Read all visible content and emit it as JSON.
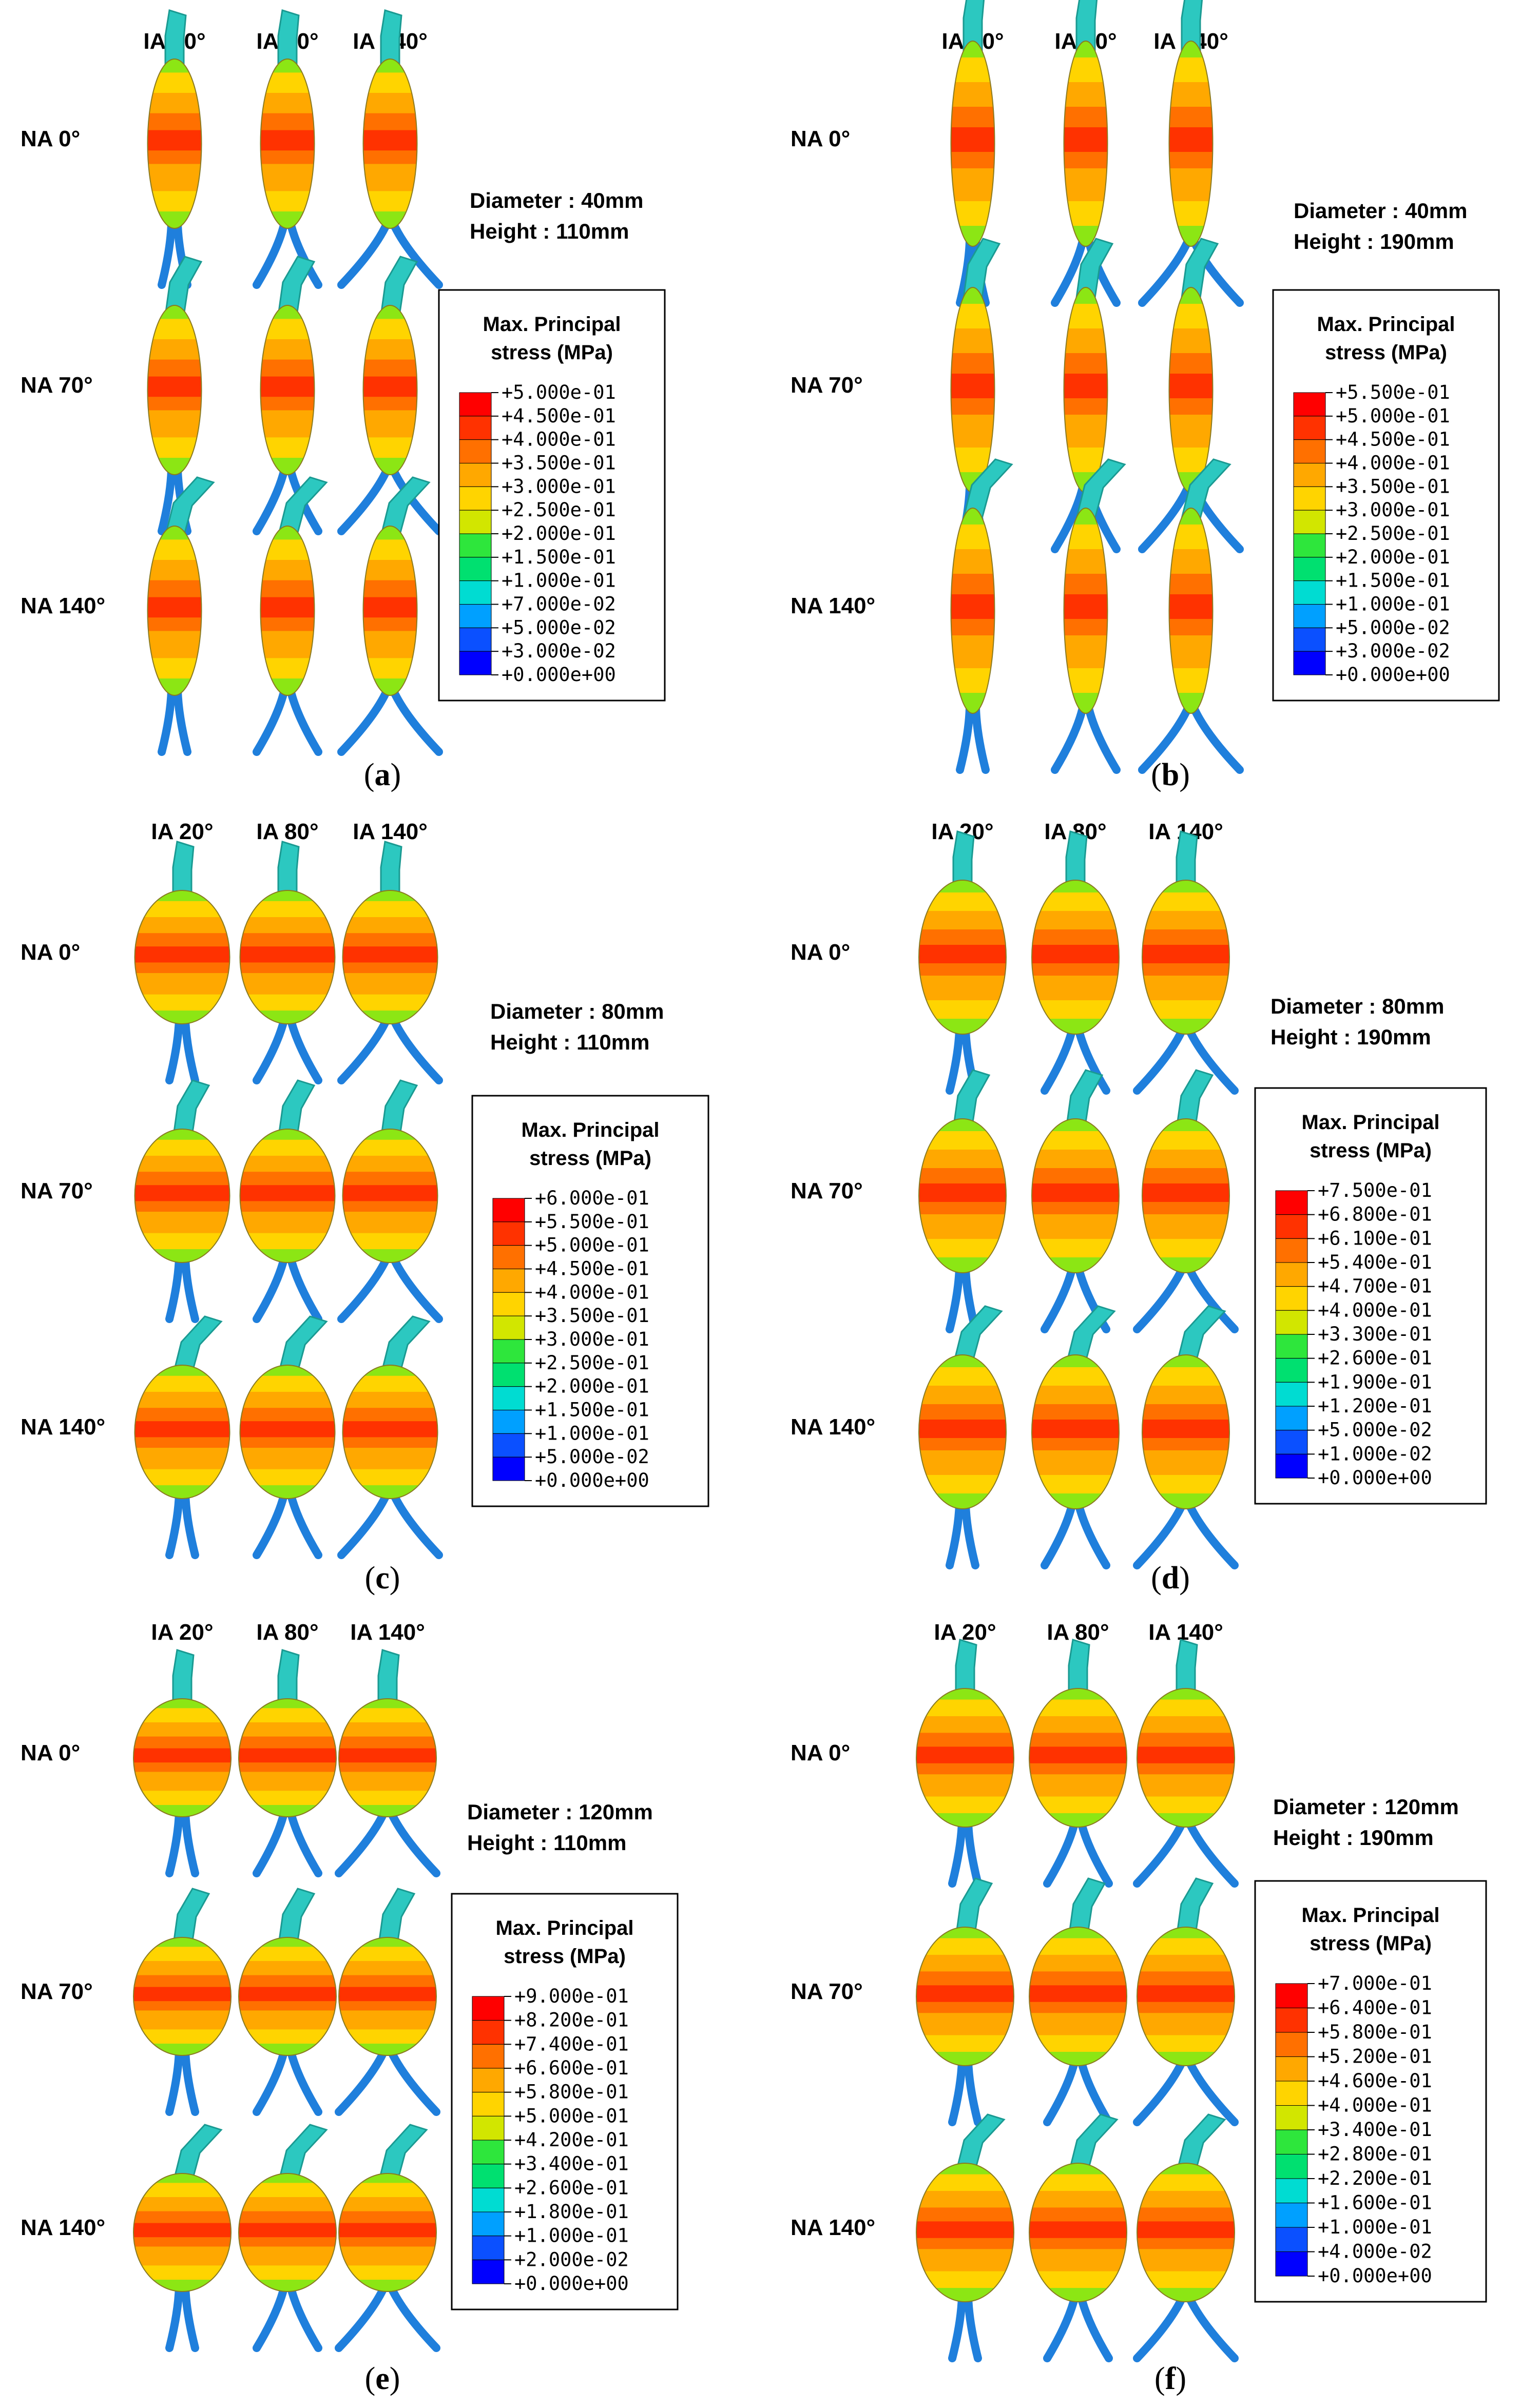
{
  "figure": {
    "column_headers": [
      "IA 20°",
      "IA 80°",
      "IA 140°"
    ],
    "row_labels": [
      "NA 0°",
      "NA 70°",
      "NA 140°"
    ],
    "legend_title_line1": "Max. Principal",
    "legend_title_line2": "stress (MPa)",
    "colors": {
      "contour": [
        "#0000ff",
        "#0b50ff",
        "#00a0ff",
        "#00dcd2",
        "#00e070",
        "#2ee63c",
        "#8ce614",
        "#d2e600",
        "#ffd400",
        "#ffa800",
        "#ff7000",
        "#ff3200",
        "#ff0000"
      ],
      "nozzle": "#2cc8c0",
      "legs": "#1f7fdc"
    },
    "panels": [
      {
        "id": "a",
        "caption": "a",
        "diameter_text": "Diameter : 40mm",
        "height_text": "Height : 110mm",
        "legend_values": [
          "+5.000e-01",
          "+4.500e-01",
          "+4.000e-01",
          "+3.500e-01",
          "+3.000e-01",
          "+2.500e-01",
          "+2.000e-01",
          "+1.500e-01",
          "+1.000e-01",
          "+7.000e-02",
          "+5.000e-02",
          "+3.000e-02",
          "+0.000e+00"
        ]
      },
      {
        "id": "b",
        "caption": "b",
        "diameter_text": "Diameter : 40mm",
        "height_text": "Height : 190mm",
        "legend_values": [
          "+5.500e-01",
          "+5.000e-01",
          "+4.500e-01",
          "+4.000e-01",
          "+3.500e-01",
          "+3.000e-01",
          "+2.500e-01",
          "+2.000e-01",
          "+1.500e-01",
          "+1.000e-01",
          "+5.000e-02",
          "+3.000e-02",
          "+0.000e+00"
        ]
      },
      {
        "id": "c",
        "caption": "c",
        "diameter_text": "Diameter : 80mm",
        "height_text": "Height : 110mm",
        "legend_values": [
          "+6.000e-01",
          "+5.500e-01",
          "+5.000e-01",
          "+4.500e-01",
          "+4.000e-01",
          "+3.500e-01",
          "+3.000e-01",
          "+2.500e-01",
          "+2.000e-01",
          "+1.500e-01",
          "+1.000e-01",
          "+5.000e-02",
          "+0.000e+00"
        ]
      },
      {
        "id": "d",
        "caption": "d",
        "diameter_text": "Diameter : 80mm",
        "height_text": "Height : 190mm",
        "legend_values": [
          "+7.500e-01",
          "+6.800e-01",
          "+6.100e-01",
          "+5.400e-01",
          "+4.700e-01",
          "+4.000e-01",
          "+3.300e-01",
          "+2.600e-01",
          "+1.900e-01",
          "+1.200e-01",
          "+5.000e-02",
          "+1.000e-02",
          "+0.000e+00"
        ]
      },
      {
        "id": "e",
        "caption": "e",
        "diameter_text": "Diameter : 120mm",
        "height_text": "Height : 110mm",
        "legend_values": [
          "+9.000e-01",
          "+8.200e-01",
          "+7.400e-01",
          "+6.600e-01",
          "+5.800e-01",
          "+5.000e-01",
          "+4.200e-01",
          "+3.400e-01",
          "+2.600e-01",
          "+1.800e-01",
          "+1.000e-01",
          "+2.000e-02",
          "+0.000e+00"
        ]
      },
      {
        "id": "f",
        "caption": "f",
        "diameter_text": "Diameter : 120mm",
        "height_text": "Height : 190mm",
        "legend_values": [
          "+7.000e-01",
          "+6.400e-01",
          "+5.800e-01",
          "+5.200e-01",
          "+4.600e-01",
          "+4.000e-01",
          "+3.400e-01",
          "+2.800e-01",
          "+2.200e-01",
          "+1.600e-01",
          "+1.000e-01",
          "+4.000e-02",
          "+0.000e+00"
        ]
      }
    ]
  }
}
